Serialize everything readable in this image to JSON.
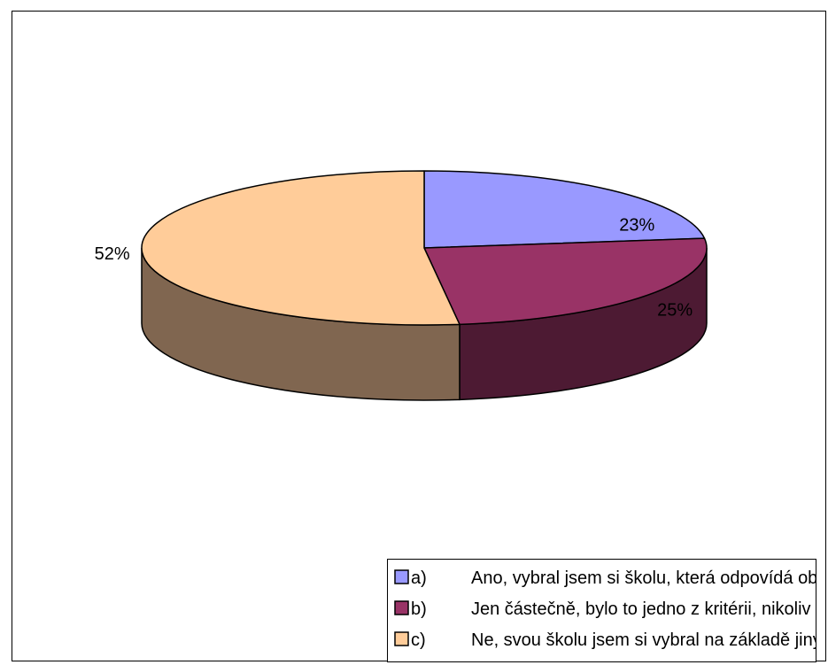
{
  "chart_data": {
    "type": "pie",
    "title": "",
    "three_d": true,
    "legend_position": "bottom",
    "slices": [
      {
        "key": "a)",
        "label": "Ano, vybral jsem si školu, která odpovídá oblasti mé zájmové činnosti.",
        "value": 23,
        "value_label": "23%",
        "color": "#9999ff",
        "side_color": "#6b6bb3"
      },
      {
        "key": "b)",
        "label": "Jen částečně, bylo to jedno z kritérii, nikoliv však tím nejdůležitějším.",
        "value": 25,
        "value_label": "25%",
        "color": "#993366",
        "side_color": "#4d1a33"
      },
      {
        "key": "c)",
        "label": "Ne, svou školu jsem si vybral na základě jiných kritérii.",
        "value": 52,
        "value_label": "52%",
        "color": "#ffcc99",
        "side_color": "#806650"
      }
    ]
  }
}
